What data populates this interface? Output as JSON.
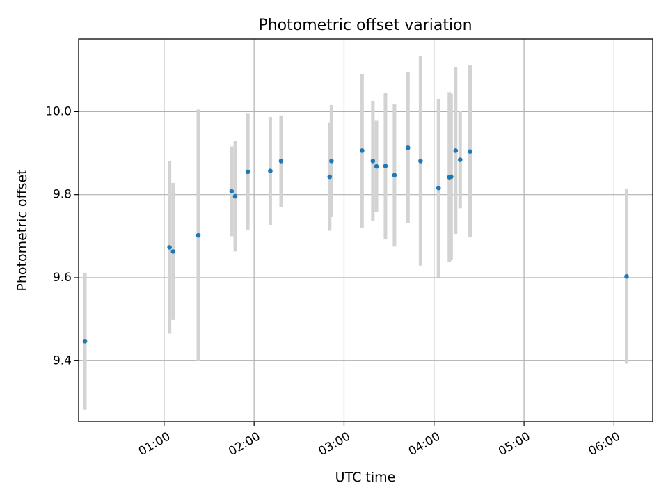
{
  "chart_data": {
    "type": "scatter",
    "title": "Photometric offset variation",
    "xlabel": "UTC time",
    "ylabel": "Photometric offset",
    "x_unit": "hours UTC",
    "xlim": [
      0.05,
      6.43
    ],
    "ylim": [
      9.253,
      10.175
    ],
    "grid": true,
    "legend": "none",
    "x_tick_values": [
      1,
      2,
      3,
      4,
      5,
      6
    ],
    "x_tick_labels": [
      "01:00",
      "02:00",
      "03:00",
      "04:00",
      "05:00",
      "06:00"
    ],
    "y_tick_values": [
      9.4,
      9.6,
      9.8,
      10.0
    ],
    "y_tick_labels": [
      "9.4",
      "9.6",
      "9.8",
      "10.0"
    ],
    "colors": {
      "point": "#1f77b4",
      "errorbar": "#d3d3d3",
      "grid": "#b0b0b0"
    },
    "points": [
      {
        "x": 0.12,
        "y": 9.447,
        "err": 0.165
      },
      {
        "x": 1.06,
        "y": 9.673,
        "err": 0.208
      },
      {
        "x": 1.1,
        "y": 9.663,
        "err": 0.165
      },
      {
        "x": 1.38,
        "y": 9.702,
        "err": 0.303
      },
      {
        "x": 1.75,
        "y": 9.808,
        "err": 0.108
      },
      {
        "x": 1.79,
        "y": 9.796,
        "err": 0.133
      },
      {
        "x": 1.93,
        "y": 9.855,
        "err": 0.14
      },
      {
        "x": 2.18,
        "y": 9.857,
        "err": 0.13
      },
      {
        "x": 2.3,
        "y": 9.881,
        "err": 0.11
      },
      {
        "x": 2.84,
        "y": 9.843,
        "err": 0.13
      },
      {
        "x": 2.86,
        "y": 9.881,
        "err": 0.135
      },
      {
        "x": 3.2,
        "y": 9.906,
        "err": 0.185
      },
      {
        "x": 3.32,
        "y": 9.881,
        "err": 0.145
      },
      {
        "x": 3.36,
        "y": 9.868,
        "err": 0.11
      },
      {
        "x": 3.46,
        "y": 9.869,
        "err": 0.177
      },
      {
        "x": 3.56,
        "y": 9.847,
        "err": 0.172
      },
      {
        "x": 3.71,
        "y": 9.913,
        "err": 0.182
      },
      {
        "x": 3.85,
        "y": 9.881,
        "err": 0.252
      },
      {
        "x": 4.05,
        "y": 9.816,
        "err": 0.215
      },
      {
        "x": 4.17,
        "y": 9.842,
        "err": 0.205
      },
      {
        "x": 4.19,
        "y": 9.843,
        "err": 0.2
      },
      {
        "x": 4.24,
        "y": 9.906,
        "err": 0.202
      },
      {
        "x": 4.29,
        "y": 9.884,
        "err": 0.117
      },
      {
        "x": 4.4,
        "y": 9.904,
        "err": 0.207
      },
      {
        "x": 6.14,
        "y": 9.603,
        "err": 0.21
      }
    ]
  }
}
